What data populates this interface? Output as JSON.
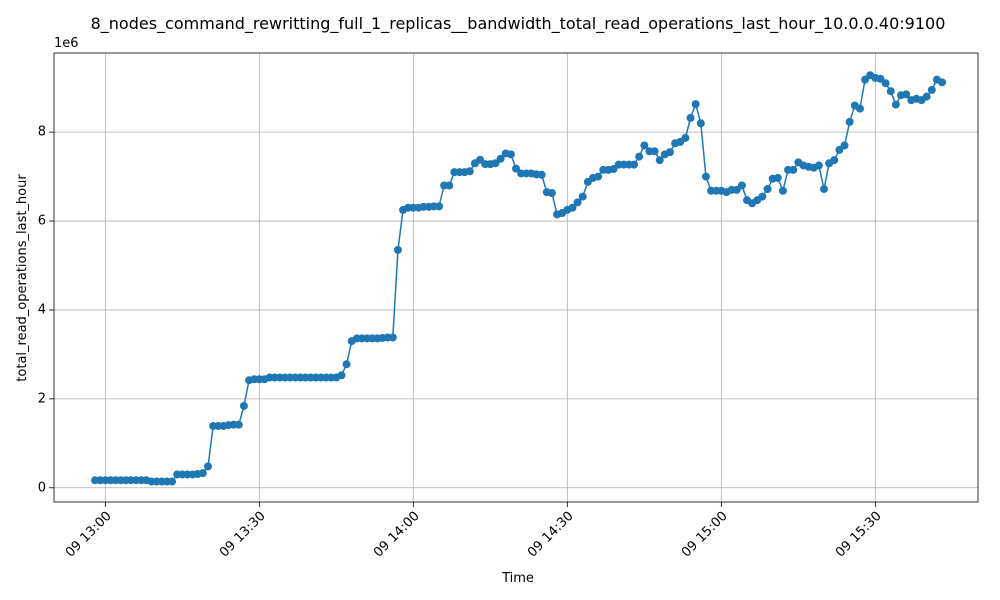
{
  "chart_data": {
    "type": "line",
    "title": "8_nodes_command_rewritting_full_1_replicas__bandwidth_total_read_operations_last_hour_10.0.0.40:9100",
    "xlabel": "Time",
    "ylabel": "total_read_operations_last_hour",
    "y_offset_label": "1e6",
    "color": "#1f77b4",
    "grid": true,
    "marker": "o",
    "x": [
      "09 12:58",
      "09 12:59",
      "09 13:00",
      "09 13:01",
      "09 13:02",
      "09 13:03",
      "09 13:04",
      "09 13:05",
      "09 13:06",
      "09 13:07",
      "09 13:08",
      "09 13:09",
      "09 13:10",
      "09 13:11",
      "09 13:12",
      "09 13:13",
      "09 13:14",
      "09 13:15",
      "09 13:16",
      "09 13:17",
      "09 13:18",
      "09 13:19",
      "09 13:20",
      "09 13:21",
      "09 13:22",
      "09 13:23",
      "09 13:24",
      "09 13:25",
      "09 13:26",
      "09 13:27",
      "09 13:28",
      "09 13:29",
      "09 13:30",
      "09 13:31",
      "09 13:32",
      "09 13:33",
      "09 13:34",
      "09 13:35",
      "09 13:36",
      "09 13:37",
      "09 13:38",
      "09 13:39",
      "09 13:40",
      "09 13:41",
      "09 13:42",
      "09 13:43",
      "09 13:44",
      "09 13:45",
      "09 13:46",
      "09 13:47",
      "09 13:48",
      "09 13:49",
      "09 13:50",
      "09 13:51",
      "09 13:52",
      "09 13:53",
      "09 13:54",
      "09 13:55",
      "09 13:56",
      "09 13:57",
      "09 13:58",
      "09 13:59",
      "09 14:00",
      "09 14:01",
      "09 14:02",
      "09 14:03",
      "09 14:04",
      "09 14:05",
      "09 14:06",
      "09 14:07",
      "09 14:08",
      "09 14:09",
      "09 14:10",
      "09 14:11",
      "09 14:12",
      "09 14:13",
      "09 14:14",
      "09 14:15",
      "09 14:16",
      "09 14:17",
      "09 14:18",
      "09 14:19",
      "09 14:20",
      "09 14:21",
      "09 14:22",
      "09 14:23",
      "09 14:24",
      "09 14:25",
      "09 14:26",
      "09 14:27",
      "09 14:28",
      "09 14:29",
      "09 14:30",
      "09 14:31",
      "09 14:32",
      "09 14:33",
      "09 14:34",
      "09 14:35",
      "09 14:36",
      "09 14:37",
      "09 14:38",
      "09 14:39",
      "09 14:40",
      "09 14:41",
      "09 14:42",
      "09 14:43",
      "09 14:44",
      "09 14:45",
      "09 14:46",
      "09 14:47",
      "09 14:48",
      "09 14:49",
      "09 14:50",
      "09 14:51",
      "09 14:52",
      "09 14:53",
      "09 14:54",
      "09 14:55",
      "09 14:56",
      "09 14:57",
      "09 14:58",
      "09 14:59",
      "09 15:00",
      "09 15:01",
      "09 15:02",
      "09 15:03",
      "09 15:04",
      "09 15:05",
      "09 15:06",
      "09 15:07",
      "09 15:08",
      "09 15:09",
      "09 15:10",
      "09 15:11",
      "09 15:12",
      "09 15:13",
      "09 15:14",
      "09 15:15",
      "09 15:16",
      "09 15:17",
      "09 15:18",
      "09 15:19",
      "09 15:20",
      "09 15:21",
      "09 15:22",
      "09 15:23",
      "09 15:24",
      "09 15:25",
      "09 15:26",
      "09 15:27",
      "09 15:28",
      "09 15:29",
      "09 15:30",
      "09 15:31",
      "09 15:32",
      "09 15:33",
      "09 15:34",
      "09 15:35",
      "09 15:36",
      "09 15:37",
      "09 15:38",
      "09 15:39",
      "09 15:40",
      "09 15:41",
      "09 15:42",
      "09 15:43"
    ],
    "values": [
      170000,
      170000,
      170000,
      170000,
      170000,
      170000,
      170000,
      170000,
      170000,
      170000,
      170000,
      140000,
      140000,
      140000,
      140000,
      140000,
      300000,
      300000,
      300000,
      300000,
      310000,
      330000,
      480000,
      1390000,
      1390000,
      1390000,
      1410000,
      1420000,
      1420000,
      1840000,
      2420000,
      2440000,
      2440000,
      2440000,
      2480000,
      2480000,
      2480000,
      2480000,
      2480000,
      2480000,
      2480000,
      2480000,
      2480000,
      2480000,
      2480000,
      2480000,
      2480000,
      2480000,
      2530000,
      2780000,
      3300000,
      3360000,
      3360000,
      3360000,
      3360000,
      3360000,
      3370000,
      3380000,
      3380000,
      5350000,
      6250000,
      6300000,
      6300000,
      6300000,
      6320000,
      6320000,
      6330000,
      6330000,
      6800000,
      6800000,
      7100000,
      7100000,
      7100000,
      7120000,
      7300000,
      7380000,
      7280000,
      7280000,
      7300000,
      7400000,
      7520000,
      7500000,
      7180000,
      7070000,
      7070000,
      7070000,
      7050000,
      7040000,
      6650000,
      6630000,
      6150000,
      6180000,
      6250000,
      6300000,
      6420000,
      6550000,
      6880000,
      6970000,
      7000000,
      7150000,
      7150000,
      7170000,
      7270000,
      7270000,
      7270000,
      7270000,
      7450000,
      7700000,
      7570000,
      7570000,
      7370000,
      7500000,
      7550000,
      7750000,
      7780000,
      7870000,
      8320000,
      8630000,
      8200000,
      7000000,
      6680000,
      6680000,
      6680000,
      6650000,
      6700000,
      6700000,
      6800000,
      6470000,
      6400000,
      6470000,
      6550000,
      6720000,
      6950000,
      6970000,
      6680000,
      7150000,
      7150000,
      7320000,
      7250000,
      7220000,
      7200000,
      7250000,
      6720000,
      7300000,
      7370000,
      7600000,
      7700000,
      8230000,
      8600000,
      8530000,
      9180000,
      9280000,
      9220000,
      9200000,
      9100000,
      8920000,
      8620000,
      8830000,
      8850000,
      8720000,
      8750000,
      8720000,
      8800000,
      8950000,
      9180000,
      9120000
    ],
    "xlim": [
      "09 12:50",
      "09 15:50"
    ],
    "xticks": [
      "09 13:00",
      "09 13:30",
      "09 14:00",
      "09 14:30",
      "09 15:00",
      "09 15:30"
    ],
    "ylim": [
      -320000,
      9780000
    ],
    "yticks": [
      0,
      {
        "value": 2000000,
        "label": "2"
      },
      {
        "value": 4000000,
        "label": "4"
      },
      {
        "value": 6000000,
        "label": "6"
      },
      {
        "value": 8000000,
        "label": "8"
      }
    ]
  }
}
